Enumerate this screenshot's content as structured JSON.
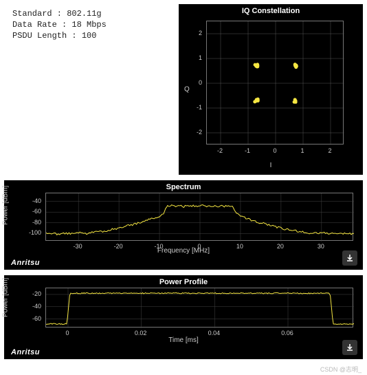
{
  "info": {
    "standard": "Standard : 802.11g",
    "data_rate": "Data Rate : 18 Mbps",
    "psdu": "PSDU Length : 100"
  },
  "iq": {
    "title": "IQ Constellation",
    "xlim": [
      -2.5,
      2.5
    ],
    "ylim": [
      -2.5,
      2.5
    ],
    "xticks": [
      -2,
      -1,
      0,
      1,
      2
    ],
    "yticks": [
      -2,
      -1,
      0,
      1,
      2
    ],
    "xlabel": "I",
    "ylabel": "Q",
    "grid_color": "#555555",
    "points": [
      {
        "x": -0.7,
        "y": 0.7
      },
      {
        "x": 0.7,
        "y": 0.7
      },
      {
        "x": -0.7,
        "y": -0.7
      },
      {
        "x": 0.7,
        "y": -0.7
      }
    ],
    "point_color": "#f5e642",
    "point_size": 5
  },
  "spectrum": {
    "title": "Spectrum",
    "xlabel": "Frequency [MHz]",
    "ylabel": "Power [dBm]",
    "xlim": [
      -38,
      38
    ],
    "ylim": [
      -115,
      -25
    ],
    "xticks": [
      -30,
      -20,
      -10,
      0,
      10,
      20,
      30
    ],
    "yticks": [
      -40,
      -60,
      -80,
      -100
    ],
    "grid_color": "#444444",
    "line_color": "#f5e642",
    "data": [
      [
        -38,
        -100
      ],
      [
        -35,
        -101
      ],
      [
        -32,
        -100
      ],
      [
        -30,
        -99
      ],
      [
        -28,
        -100
      ],
      [
        -26,
        -98
      ],
      [
        -24,
        -96
      ],
      [
        -22,
        -93
      ],
      [
        -20,
        -90
      ],
      [
        -18,
        -86
      ],
      [
        -16,
        -82
      ],
      [
        -14,
        -78
      ],
      [
        -12,
        -73
      ],
      [
        -10,
        -68
      ],
      [
        -9,
        -62
      ],
      [
        -8.5,
        -55
      ],
      [
        -8,
        -48
      ],
      [
        -7,
        -48
      ],
      [
        -6,
        -49
      ],
      [
        -5,
        -48
      ],
      [
        -4,
        -50
      ],
      [
        -3,
        -48
      ],
      [
        -2,
        -49
      ],
      [
        -1,
        -48
      ],
      [
        0,
        -49
      ],
      [
        1,
        -48
      ],
      [
        2,
        -50
      ],
      [
        3,
        -48
      ],
      [
        4,
        -49
      ],
      [
        5,
        -48
      ],
      [
        6,
        -49
      ],
      [
        7,
        -48
      ],
      [
        8,
        -48
      ],
      [
        8.5,
        -55
      ],
      [
        9,
        -62
      ],
      [
        10,
        -68
      ],
      [
        12,
        -73
      ],
      [
        14,
        -78
      ],
      [
        16,
        -82
      ],
      [
        18,
        -86
      ],
      [
        20,
        -90
      ],
      [
        22,
        -93
      ],
      [
        24,
        -96
      ],
      [
        26,
        -98
      ],
      [
        28,
        -100
      ],
      [
        30,
        -99
      ],
      [
        32,
        -100
      ],
      [
        35,
        -101
      ],
      [
        38,
        -100
      ]
    ],
    "noise_amp": 2.0
  },
  "power": {
    "title": "Power Profile",
    "xlabel": "Time [ms]",
    "ylabel": "Power [dBm]",
    "xlim": [
      -0.006,
      0.078
    ],
    "ylim": [
      -75,
      -10
    ],
    "xticks": [
      0,
      0.02,
      0.04,
      0.06
    ],
    "yticks": [
      -20,
      -40,
      -60
    ],
    "grid_color": "#444444",
    "line_color": "#f5e642",
    "rise_t": 0.0005,
    "fall_t": 0.0715,
    "low_db": -68,
    "high_db": -18,
    "noise_amp": 0.8
  },
  "brand": "Anritsu",
  "download_icon": "download-icon",
  "watermark": "CSDN @志明_"
}
